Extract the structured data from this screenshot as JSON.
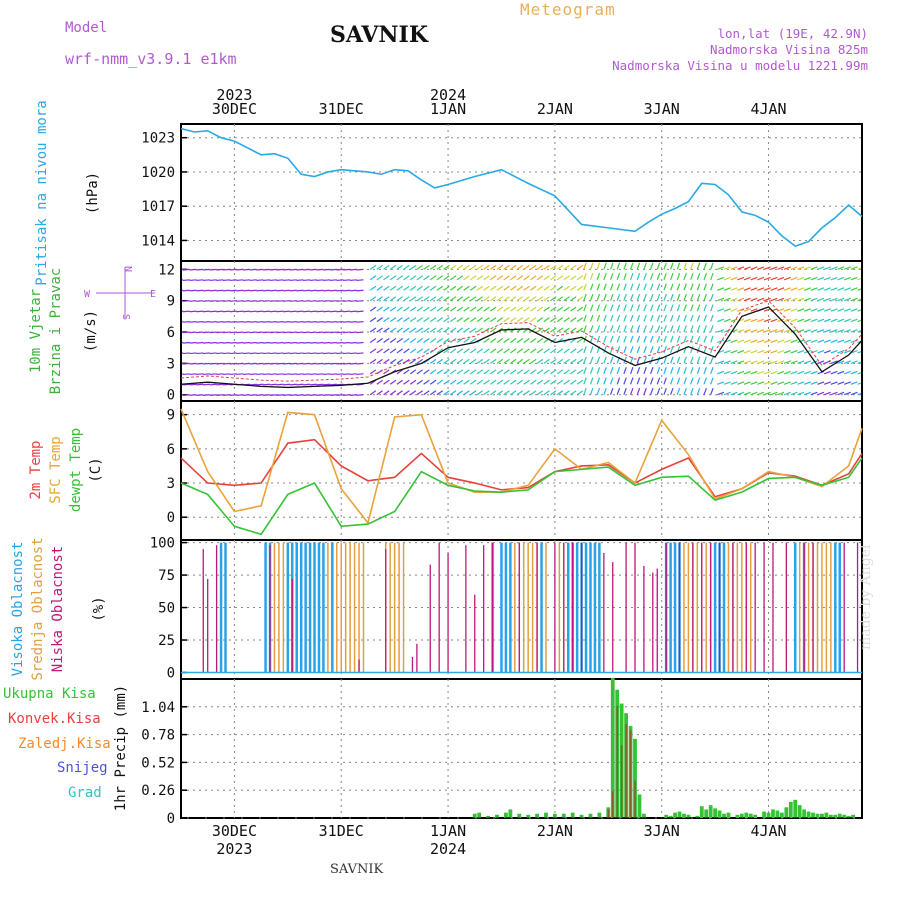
{
  "header": {
    "title": "SAVNIK",
    "meteogram": "Meteogram",
    "model_label": "Model",
    "model_name": "wrf-nmm_v3.9.1 e1km",
    "lonlat": "lon,lat (19E, 42.9N)",
    "elevation": "Nadmorska Visina 825m",
    "model_elevation": "Nadmorska Visina u modelu 1221.99m"
  },
  "footer": {
    "station": "SAVNIK",
    "credit": "made by Angel"
  },
  "colors": {
    "pressure": "#29a9e6",
    "temp2m": "#e8413c",
    "sfc_temp": "#e8a33a",
    "dewpt": "#35c235",
    "wind_label": "#3ab33a",
    "high_cloud": "#2aa2e8",
    "mid_cloud": "#e0a040",
    "low_cloud": "#c0157c",
    "total_precip": "#35c235",
    "conv_precip": "#e8413c",
    "frz_precip": "#f28a2c",
    "snow": "#5050e0",
    "graupel": "#35c2c2",
    "purple": "#b05ad0"
  },
  "time_axis": {
    "top_labels": [
      {
        "day": "30DEC",
        "year": "2023"
      },
      {
        "day": "31DEC",
        "year": ""
      },
      {
        "day": "1JAN",
        "year": "2024"
      },
      {
        "day": "2JAN",
        "year": ""
      },
      {
        "day": "3JAN",
        "year": ""
      },
      {
        "day": "4JAN",
        "year": ""
      }
    ],
    "bottom_labels": [
      {
        "day": "30DEC",
        "year": "2023"
      },
      {
        "day": "31DEC",
        "year": ""
      },
      {
        "day": "1JAN",
        "year": "2024"
      },
      {
        "day": "2JAN",
        "year": ""
      },
      {
        "day": "3JAN",
        "year": ""
      },
      {
        "day": "4JAN",
        "year": ""
      }
    ]
  },
  "chart_data": [
    {
      "type": "line",
      "panel": "pressure",
      "ylabel": [
        "Pritisak na nivou mora",
        "(hPa)"
      ],
      "yticks": [
        1014,
        1017,
        1020,
        1023
      ],
      "ylim": [
        1012.2,
        1024.2
      ],
      "grid": true,
      "x_hours": [
        0,
        3,
        6,
        9,
        12,
        15,
        18,
        21,
        24,
        27,
        30,
        33,
        36,
        42,
        45,
        48,
        51,
        54,
        57,
        60,
        66,
        72,
        78,
        84,
        90,
        96,
        102,
        105,
        108,
        111,
        114,
        117,
        120,
        123,
        126,
        129,
        132,
        135,
        138,
        141,
        144,
        147,
        150,
        153
      ],
      "series": [
        {
          "values": [
            1023.8,
            1023.5,
            1023.6,
            1023.0,
            1022.7,
            1022.1,
            1021.5,
            1021.6,
            1021.2,
            1019.8,
            1019.6,
            1020.0,
            1020.2,
            1020.0,
            1019.8,
            1020.2,
            1020.1,
            1019.3,
            1018.6,
            1018.9,
            1019.6,
            1020.2,
            1019.0,
            1017.9,
            1015.4,
            1015.1,
            1014.8,
            1015.6,
            1016.3,
            1016.8,
            1017.4,
            1019.0,
            1018.9,
            1018.0,
            1016.5,
            1016.2,
            1015.6,
            1014.4,
            1013.5,
            1013.9,
            1015.1,
            1016.0,
            1017.1,
            1016.1
          ]
        }
      ]
    },
    {
      "type": "line",
      "panel": "wind",
      "ylabel": [
        "10m Vjetar",
        "Brzina i Pravac",
        "(m/s)"
      ],
      "compass": [
        "N",
        "E",
        "W",
        "S"
      ],
      "yticks": [
        0,
        3,
        6,
        9,
        12
      ],
      "ylim": [
        -0.6,
        12.8
      ],
      "grid": true,
      "x_hours": [
        0,
        6,
        12,
        18,
        24,
        30,
        36,
        42,
        48,
        54,
        60,
        66,
        72,
        78,
        84,
        90,
        96,
        102,
        108,
        114,
        120,
        126,
        132,
        138,
        144,
        150,
        153
      ],
      "series": [
        {
          "values": [
            1.0,
            1.2,
            1.0,
            0.8,
            0.7,
            0.8,
            0.9,
            1.1,
            2.2,
            3.0,
            4.5,
            5.0,
            6.2,
            6.3,
            5.0,
            5.5,
            4.0,
            2.8,
            3.5,
            4.6,
            3.6,
            7.5,
            8.4,
            5.8,
            2.2,
            3.8,
            5.2
          ]
        }
      ]
    },
    {
      "type": "line",
      "panel": "temperature",
      "ylabel": [
        "2m Temp",
        "SFC Temp",
        "dewpt Temp",
        "(C)"
      ],
      "yticks": [
        0,
        3,
        6,
        9
      ],
      "ylim": [
        -2.0,
        10.2
      ],
      "grid": true,
      "x_hours": [
        0,
        6,
        12,
        18,
        24,
        30,
        36,
        42,
        48,
        54,
        60,
        66,
        72,
        78,
        84,
        90,
        96,
        102,
        108,
        114,
        120,
        126,
        132,
        138,
        144,
        150,
        153
      ],
      "series": [
        {
          "name": "2m Temp",
          "values": [
            5.2,
            3.0,
            2.8,
            3.0,
            6.5,
            6.8,
            4.5,
            3.2,
            3.5,
            5.6,
            3.5,
            3.0,
            2.4,
            2.6,
            4.0,
            4.5,
            4.6,
            3.0,
            4.2,
            5.2,
            1.8,
            2.5,
            3.9,
            3.6,
            2.8,
            3.8,
            5.6
          ]
        },
        {
          "name": "SFC Temp",
          "values": [
            9.5,
            4.0,
            0.5,
            1.0,
            9.2,
            9.0,
            2.5,
            -0.5,
            8.8,
            9.0,
            3.0,
            2.2,
            2.2,
            2.8,
            6.0,
            4.2,
            4.8,
            3.0,
            8.5,
            5.5,
            1.6,
            2.5,
            4.0,
            3.5,
            2.7,
            4.5,
            7.8
          ]
        },
        {
          "name": "dewpt Temp",
          "values": [
            3.0,
            2.0,
            -0.8,
            -1.5,
            2.0,
            3.0,
            -0.8,
            -0.6,
            0.5,
            4.0,
            2.8,
            2.3,
            2.2,
            2.4,
            4.0,
            4.2,
            4.4,
            2.8,
            3.5,
            3.6,
            1.5,
            2.2,
            3.4,
            3.5,
            2.8,
            3.5,
            5.2
          ]
        }
      ]
    },
    {
      "type": "bar",
      "panel": "cloud",
      "ylabel": [
        "Visoka Oblacnost",
        "Srednja Oblacnost",
        "Niska Oblacnost",
        "(%)"
      ],
      "yticks": [
        0,
        25,
        50,
        75,
        100
      ],
      "ylim": [
        -5,
        102
      ],
      "grid": true,
      "x_hours_high": [
        9,
        10,
        19,
        20,
        24,
        25,
        26,
        27,
        28,
        29,
        30,
        31,
        32,
        34,
        70,
        72,
        73,
        74,
        81,
        87,
        88,
        89,
        90,
        91,
        92,
        93,
        94,
        109,
        110,
        111,
        112,
        120,
        121,
        122,
        138,
        140,
        147,
        148
      ],
      "x_hours_mid": [
        20,
        21,
        22,
        23,
        24,
        25,
        26,
        27,
        28,
        29,
        30,
        31,
        32,
        33,
        34,
        35,
        36,
        37,
        38,
        39,
        40,
        41,
        46,
        47,
        48,
        49,
        50,
        73,
        74,
        75,
        76,
        77,
        78,
        79,
        80,
        82,
        85,
        86,
        87,
        88,
        89,
        90,
        91,
        92,
        93,
        111,
        113,
        114,
        115,
        116,
        117,
        118,
        119,
        121,
        122,
        123,
        124,
        125,
        126,
        127,
        128,
        139,
        140,
        141,
        142,
        143,
        144,
        145,
        146,
        147
      ],
      "x_hours_low": [
        {
          "h": 5,
          "v": 95
        },
        {
          "h": 6,
          "v": 72
        },
        {
          "h": 8,
          "v": 98
        },
        {
          "h": 20,
          "v": 98
        },
        {
          "h": 25,
          "v": 72
        },
        {
          "h": 40,
          "v": 10
        },
        {
          "h": 46,
          "v": 95
        },
        {
          "h": 52,
          "v": 12
        },
        {
          "h": 53,
          "v": 22
        },
        {
          "h": 56,
          "v": 83
        },
        {
          "h": 58,
          "v": 100
        },
        {
          "h": 60,
          "v": 92
        },
        {
          "h": 64,
          "v": 98
        },
        {
          "h": 66,
          "v": 60
        },
        {
          "h": 68,
          "v": 98
        },
        {
          "h": 70,
          "v": 100
        },
        {
          "h": 76,
          "v": 100
        },
        {
          "h": 80,
          "v": 100
        },
        {
          "h": 84,
          "v": 100
        },
        {
          "h": 86,
          "v": 100
        },
        {
          "h": 88,
          "v": 100
        },
        {
          "h": 90,
          "v": 100
        },
        {
          "h": 95,
          "v": 92
        },
        {
          "h": 97,
          "v": 85
        },
        {
          "h": 100,
          "v": 100
        },
        {
          "h": 102,
          "v": 100
        },
        {
          "h": 104,
          "v": 82
        },
        {
          "h": 106,
          "v": 77
        },
        {
          "h": 107,
          "v": 80
        },
        {
          "h": 109,
          "v": 100
        },
        {
          "h": 112,
          "v": 100
        },
        {
          "h": 115,
          "v": 100
        },
        {
          "h": 117,
          "v": 100
        },
        {
          "h": 119,
          "v": 100
        },
        {
          "h": 121,
          "v": 100
        },
        {
          "h": 124,
          "v": 100
        },
        {
          "h": 127,
          "v": 100
        },
        {
          "h": 129,
          "v": 100
        },
        {
          "h": 131,
          "v": 100
        },
        {
          "h": 133,
          "v": 100
        },
        {
          "h": 136,
          "v": 100
        },
        {
          "h": 140,
          "v": 100
        },
        {
          "h": 142,
          "v": 100
        },
        {
          "h": 149,
          "v": 100
        },
        {
          "h": 152,
          "v": 100
        }
      ]
    },
    {
      "type": "bar",
      "panel": "precip",
      "ylabel": [
        "1hr Precip (mm)"
      ],
      "legend": [
        "Ukupna Kisa",
        "Konvek.Kisa",
        "Zaledj.Kisa",
        "Snijeg",
        "Grad"
      ],
      "yticks": [
        0,
        0.26,
        0.52,
        0.78,
        1.04
      ],
      "ylim": [
        0,
        1.3
      ],
      "grid": true,
      "bars": [
        {
          "h": 66,
          "total": 0.04
        },
        {
          "h": 67,
          "total": 0.05
        },
        {
          "h": 69,
          "total": 0.02
        },
        {
          "h": 71,
          "total": 0.03
        },
        {
          "h": 73,
          "total": 0.05
        },
        {
          "h": 74,
          "total": 0.08
        },
        {
          "h": 76,
          "total": 0.04
        },
        {
          "h": 78,
          "total": 0.03
        },
        {
          "h": 80,
          "total": 0.04
        },
        {
          "h": 82,
          "total": 0.05
        },
        {
          "h": 84,
          "total": 0.04
        },
        {
          "h": 86,
          "total": 0.04
        },
        {
          "h": 88,
          "total": 0.05
        },
        {
          "h": 90,
          "total": 0.03
        },
        {
          "h": 92,
          "total": 0.04
        },
        {
          "h": 94,
          "total": 0.05
        },
        {
          "h": 96,
          "total": 0.1,
          "conv": 0.08
        },
        {
          "h": 97,
          "total": 1.31,
          "conv": 0.25
        },
        {
          "h": 98,
          "total": 1.2,
          "conv": 1.05
        },
        {
          "h": 99,
          "total": 1.07,
          "conv": 0.68
        },
        {
          "h": 100,
          "total": 0.98,
          "conv": 0.88
        },
        {
          "h": 101,
          "total": 0.86,
          "conv": 0.82
        },
        {
          "h": 102,
          "total": 0.74,
          "conv": 0.35
        },
        {
          "h": 103,
          "total": 0.22
        },
        {
          "h": 104,
          "total": 0.04
        },
        {
          "h": 109,
          "total": 0.03
        },
        {
          "h": 110,
          "total": 0.02
        },
        {
          "h": 111,
          "total": 0.05
        },
        {
          "h": 112,
          "total": 0.06
        },
        {
          "h": 113,
          "total": 0.04
        },
        {
          "h": 114,
          "total": 0.03
        },
        {
          "h": 116,
          "total": 0.02
        },
        {
          "h": 117,
          "total": 0.11
        },
        {
          "h": 118,
          "total": 0.08
        },
        {
          "h": 119,
          "total": 0.12
        },
        {
          "h": 120,
          "total": 0.09
        },
        {
          "h": 121,
          "total": 0.07
        },
        {
          "h": 122,
          "total": 0.04
        },
        {
          "h": 123,
          "total": 0.05
        },
        {
          "h": 125,
          "total": 0.03
        },
        {
          "h": 126,
          "total": 0.04
        },
        {
          "h": 127,
          "total": 0.05
        },
        {
          "h": 128,
          "total": 0.04
        },
        {
          "h": 129,
          "total": 0.03
        },
        {
          "h": 131,
          "total": 0.06
        },
        {
          "h": 132,
          "total": 0.05
        },
        {
          "h": 133,
          "total": 0.08
        },
        {
          "h": 134,
          "total": 0.07
        },
        {
          "h": 135,
          "total": 0.05
        },
        {
          "h": 136,
          "total": 0.1
        },
        {
          "h": 137,
          "total": 0.15
        },
        {
          "h": 138,
          "total": 0.17
        },
        {
          "h": 139,
          "total": 0.12
        },
        {
          "h": 140,
          "total": 0.08
        },
        {
          "h": 141,
          "total": 0.06
        },
        {
          "h": 142,
          "total": 0.05
        },
        {
          "h": 143,
          "total": 0.04
        },
        {
          "h": 144,
          "total": 0.04
        },
        {
          "h": 145,
          "total": 0.05
        },
        {
          "h": 146,
          "total": 0.03
        },
        {
          "h": 147,
          "total": 0.03
        },
        {
          "h": 148,
          "total": 0.04
        },
        {
          "h": 149,
          "total": 0.03
        },
        {
          "h": 150,
          "total": 0.02
        },
        {
          "h": 151,
          "total": 0.03
        }
      ]
    }
  ]
}
